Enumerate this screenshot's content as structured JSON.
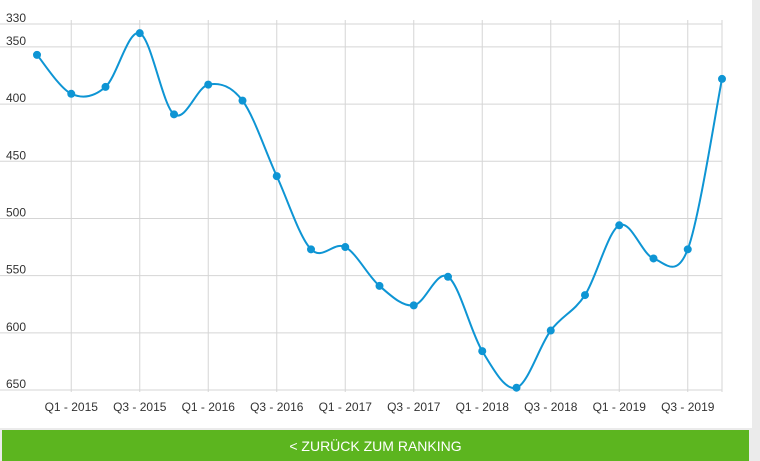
{
  "chart_data": {
    "type": "line",
    "title": "",
    "xlabel": "",
    "ylabel": "",
    "y_inverted": true,
    "ylim": [
      330,
      650
    ],
    "y_ticks": [
      330,
      350,
      400,
      450,
      500,
      550,
      600,
      650
    ],
    "x_tick_labels": [
      "Q1 - 2015",
      "Q3 - 2015",
      "Q1 - 2016",
      "Q3 - 2016",
      "Q1 - 2017",
      "Q3 - 2017",
      "Q1 - 2018",
      "Q3 - 2018",
      "Q1 - 2019",
      "Q3 - 2019"
    ],
    "grid": true,
    "line_color": "#0e95d4",
    "series": [
      {
        "x": [
          "Q4 - 2014",
          "Q1 - 2015",
          "Q2 - 2015",
          "Q3 - 2015",
          "Q4 - 2015",
          "Q1 - 2016",
          "Q2 - 2016",
          "Q3 - 2016",
          "Q4 - 2016",
          "Q1 - 2017",
          "Q2 - 2017",
          "Q3 - 2017",
          "Q4 - 2017",
          "Q1 - 2018",
          "Q2 - 2018",
          "Q3 - 2018",
          "Q4 - 2018",
          "Q1 - 2019",
          "Q2 - 2019",
          "Q3 - 2019",
          "Q4 - 2019"
        ],
        "values": [
          357,
          391,
          385,
          338,
          409,
          383,
          397,
          463,
          527,
          525,
          559,
          576,
          551,
          616,
          648,
          598,
          567,
          506,
          535,
          527,
          378
        ]
      }
    ]
  },
  "footer": {
    "back_label": "< ZURÜCK ZUM RANKING",
    "bar_color": "#5cb51f"
  }
}
